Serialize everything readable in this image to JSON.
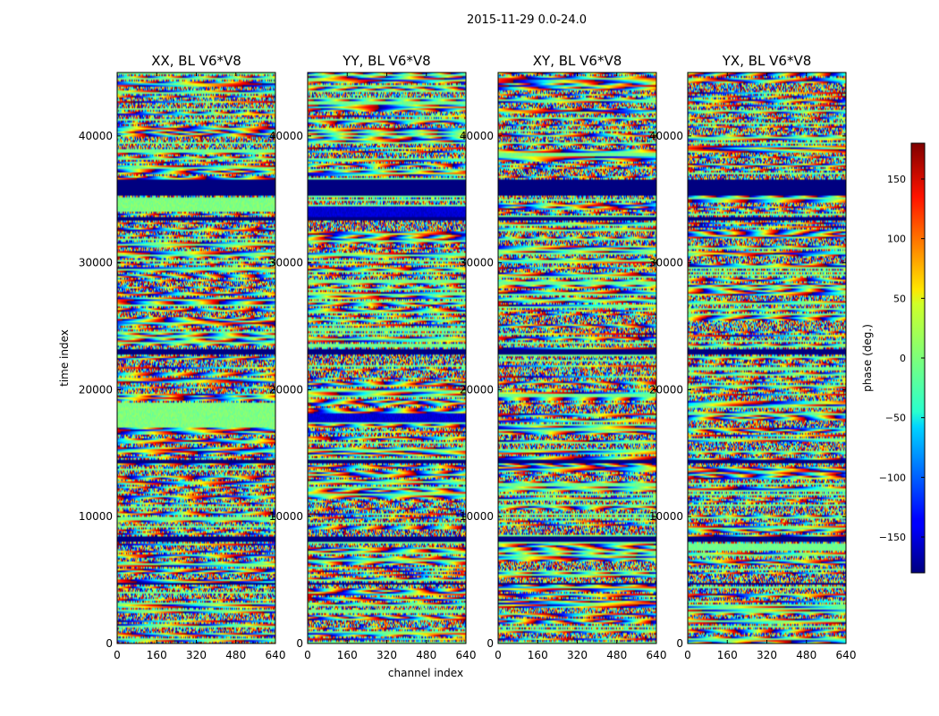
{
  "figure_title": "2015-11-29 0.0-24.0",
  "chart_data": {
    "type": "heatmap",
    "colormap": "jet",
    "xlabel": "channel index",
    "ylabel": "time index",
    "xlim": [
      0,
      640
    ],
    "ylim": [
      0,
      45000
    ],
    "xticks": [
      0,
      160,
      320,
      480,
      640
    ],
    "yticks": [
      0,
      10000,
      20000,
      30000,
      40000
    ],
    "panels": [
      {
        "title": "XX, BL V6*V8",
        "polarization": "XX"
      },
      {
        "title": "YY, BL V6*V8",
        "polarization": "YY"
      },
      {
        "title": "XY, BL V6*V8",
        "polarization": "XY"
      },
      {
        "title": "YX, BL V6*V8",
        "polarization": "YX"
      }
    ],
    "colorbar": {
      "label": "phase (deg.)",
      "range": [
        -180,
        180
      ],
      "ticks": [
        150,
        100,
        50,
        0,
        -50,
        -100,
        -150
      ],
      "tick_labels": [
        "150",
        "100",
        "50",
        "0",
        "−50",
        "−100",
        "−150"
      ]
    },
    "flagged_time_ranges": [
      [
        35300,
        36500
      ],
      [
        33300,
        33600
      ],
      [
        22800,
        23200
      ],
      [
        14200,
        14500
      ],
      [
        8000,
        8500
      ],
      [
        4600,
        4800
      ]
    ],
    "dominant_phase_regions": [
      {
        "panel": "XX",
        "time_range": [
          17000,
          19000
        ],
        "phase": 0
      },
      {
        "panel": "XX",
        "time_range": [
          34000,
          35000
        ],
        "phase": 0
      },
      {
        "panel": "YY",
        "time_range": [
          33500,
          34500
        ],
        "phase": -150
      },
      {
        "panel": "YY",
        "time_range": [
          17500,
          18200
        ],
        "phase": -150
      }
    ]
  }
}
